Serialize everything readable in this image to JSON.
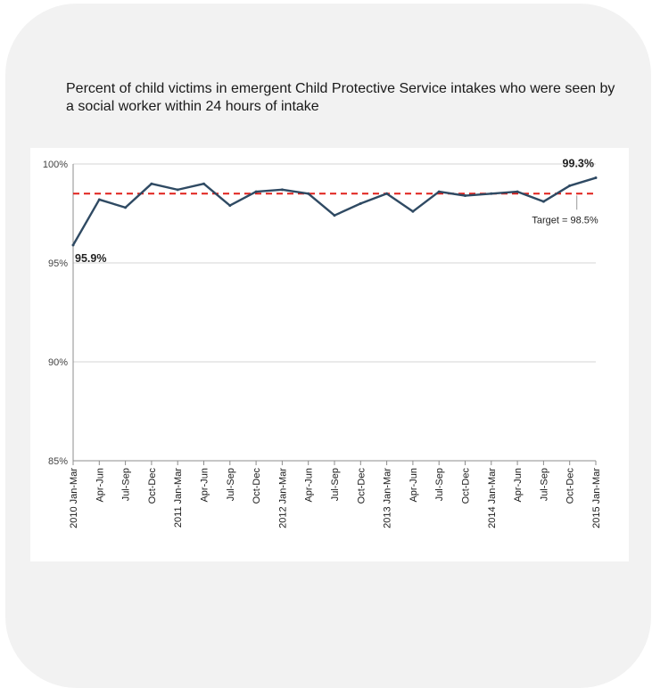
{
  "card": {
    "title": "Percent of child victims in emergent Child Protective Service intakes who were seen by a social worker within 24 hours of intake"
  },
  "chart_data": {
    "type": "line",
    "title": "Percent of child victims in emergent Child Protective Service intakes who were seen by a social worker within 24 hours of intake",
    "xlabel": "",
    "ylabel": "",
    "ylim": [
      85,
      100
    ],
    "y_ticks": [
      "85%",
      "90%",
      "95%",
      "100%"
    ],
    "y_tick_values": [
      85,
      90,
      95,
      100
    ],
    "grid": true,
    "categories": [
      "2010 Jan-Mar",
      "Apr-Jun",
      "Jul-Sep",
      "Oct-Dec",
      "2011 Jan-Mar",
      "Apr-Jun",
      "Jul-Sep",
      "Oct-Dec",
      "2012 Jan-Mar",
      "Apr-Jun",
      "Jul-Sep",
      "Oct-Dec",
      "2013 Jan-Mar",
      "Apr-Jun",
      "Jul-Sep",
      "Oct-Dec",
      "2014 Jan-Mar",
      "Apr-Jun",
      "Jul-Sep",
      "Oct-Dec",
      "2015 Jan-Mar"
    ],
    "series": [
      {
        "values": [
          95.9,
          98.2,
          97.8,
          99.0,
          98.7,
          99.0,
          97.9,
          98.6,
          98.7,
          98.5,
          97.4,
          98.0,
          98.5,
          97.6,
          98.6,
          98.4,
          98.5,
          98.6,
          98.1,
          98.9,
          99.3
        ],
        "color": "#2f4a63"
      }
    ],
    "target": {
      "value": 98.5,
      "label": "Target = 98.5%",
      "color": "#e0201b"
    },
    "data_labels": [
      {
        "index": 0,
        "text": "95.9%"
      },
      {
        "index": 20,
        "text": "99.3%"
      }
    ]
  }
}
